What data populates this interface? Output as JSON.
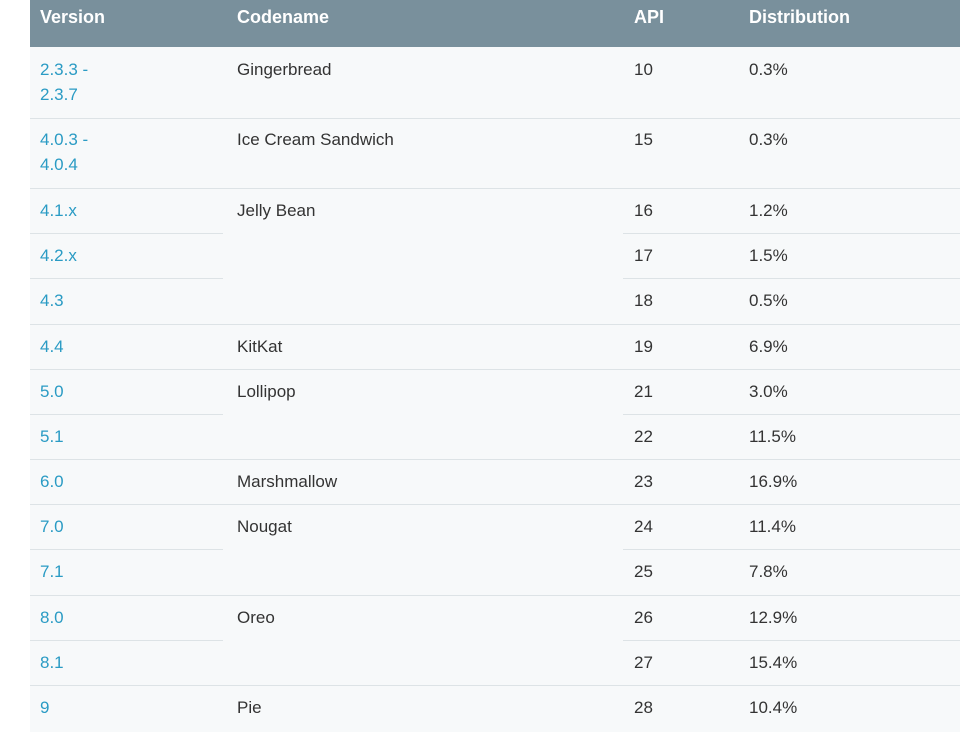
{
  "headers": {
    "version": "Version",
    "codename": "Codename",
    "api": "API",
    "distribution": "Distribution"
  },
  "rows": [
    {
      "version": "2.3.3 -\n2.3.7",
      "codename": "Gingerbread",
      "api": "10",
      "distribution": "0.3%"
    },
    {
      "version": "4.0.3 -\n4.0.4",
      "codename": "Ice Cream Sandwich",
      "api": "15",
      "distribution": "0.3%"
    },
    {
      "version": "4.1.x",
      "codename": "Jelly Bean",
      "api": "16",
      "distribution": "1.2%"
    },
    {
      "version": "4.2.x",
      "codename": "",
      "api": "17",
      "distribution": "1.5%"
    },
    {
      "version": "4.3",
      "codename": "",
      "api": "18",
      "distribution": "0.5%"
    },
    {
      "version": "4.4",
      "codename": "KitKat",
      "api": "19",
      "distribution": "6.9%"
    },
    {
      "version": "5.0",
      "codename": "Lollipop",
      "api": "21",
      "distribution": "3.0%"
    },
    {
      "version": "5.1",
      "codename": "",
      "api": "22",
      "distribution": "11.5%"
    },
    {
      "version": "6.0",
      "codename": "Marshmallow",
      "api": "23",
      "distribution": "16.9%"
    },
    {
      "version": "7.0",
      "codename": "Nougat",
      "api": "24",
      "distribution": "11.4%"
    },
    {
      "version": "7.1",
      "codename": "",
      "api": "25",
      "distribution": "7.8%"
    },
    {
      "version": "8.0",
      "codename": "Oreo",
      "api": "26",
      "distribution": "12.9%"
    },
    {
      "version": "8.1",
      "codename": "",
      "api": "27",
      "distribution": "15.4%"
    },
    {
      "version": "9",
      "codename": "Pie",
      "api": "28",
      "distribution": "10.4%"
    }
  ]
}
